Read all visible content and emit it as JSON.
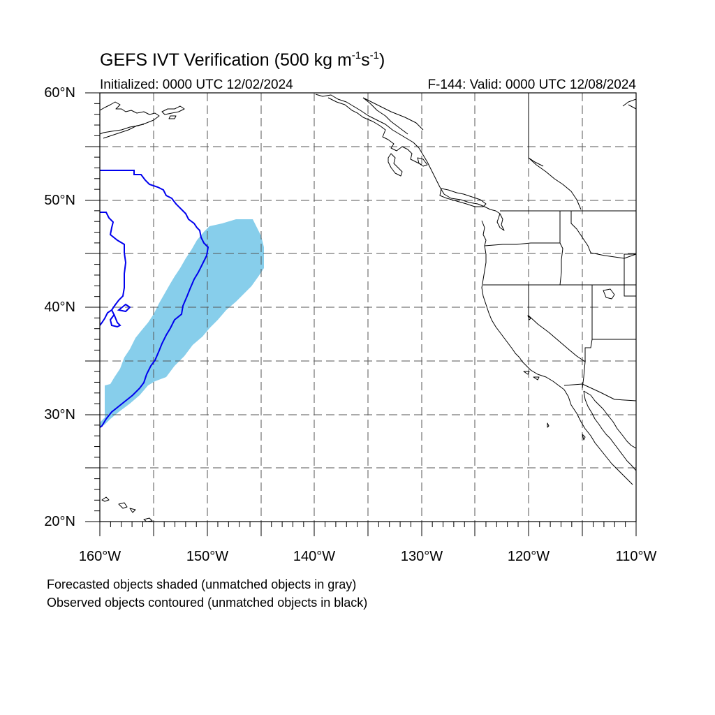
{
  "title": {
    "text": "GEFS IVT Verification (500 kg m",
    "sup1": "-1",
    "mid": "s",
    "sup2": "-1",
    "close": ")"
  },
  "initialized": "Initialized: 0000 UTC 12/02/2024",
  "valid": "F-144: Valid: 0000 UTC 12/08/2024",
  "lat_labels": [
    "60°N",
    "50°N",
    "40°N",
    "30°N",
    "20°N"
  ],
  "lon_labels": [
    "160°W",
    "150°W",
    "140°W",
    "130°W",
    "120°W",
    "110°W"
  ],
  "notes": [
    "Forecasted objects shaded (unmatched objects in gray)",
    "Observed objects contoured (unmatched objects in black)"
  ],
  "map": {
    "lon_range": [
      -160,
      -110
    ],
    "lat_range": [
      20,
      60
    ],
    "forecast_object_color": "#87ceeb",
    "observed_object_color": "#0000ee",
    "grid_line_color": "#555555"
  }
}
